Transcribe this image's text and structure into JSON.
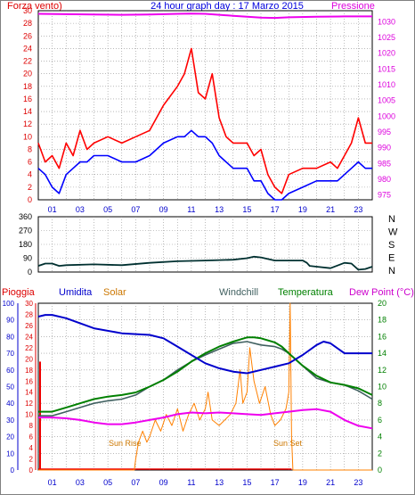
{
  "chart_data": [
    {
      "type": "line",
      "title": "24 hour graph day : 17 Marzo 2015",
      "left_axis_label": "Forza vento)",
      "right_axis_label": "Pressione",
      "x_ticks": [
        "01",
        "03",
        "05",
        "07",
        "09",
        "11",
        "13",
        "15",
        "17",
        "19",
        "21",
        "23"
      ],
      "y_left_ticks": [
        "0",
        "2",
        "4",
        "6",
        "8",
        "10",
        "12",
        "14",
        "16",
        "18",
        "20",
        "22",
        "24",
        "26",
        "28",
        "30"
      ],
      "y_left_lim": [
        0,
        30
      ],
      "y_right_ticks": [
        "975",
        "980",
        "985",
        "990",
        "995",
        "1000",
        "1005",
        "1010",
        "1015",
        "1020",
        "1025",
        "1030"
      ],
      "y_right_lim": [
        973.5,
        1033.5
      ],
      "grid": true,
      "colors": {
        "gust": "#ff0000",
        "wind": "#0000ff",
        "pressure": "#ee00ee"
      },
      "series": [
        {
          "axis": "right",
          "color": "#ee00ee",
          "x": [
            0,
            2,
            4,
            6,
            8,
            10,
            11,
            12,
            14,
            16,
            17,
            18,
            20,
            22,
            24
          ],
          "values": [
            1032.5,
            1032.4,
            1032.3,
            1032.2,
            1032.3,
            1032.5,
            1032.6,
            1032.5,
            1031.9,
            1031.3,
            1031.2,
            1031.4,
            1031.6,
            1031.7,
            1031.7
          ]
        },
        {
          "axis": "left",
          "color": "#ff0000",
          "x": [
            0,
            0.5,
            1,
            1.5,
            2,
            2.5,
            3,
            3.5,
            4,
            5,
            6,
            7,
            8,
            9,
            10,
            10.5,
            11,
            11.5,
            12,
            12.5,
            13,
            13.5,
            14,
            15,
            15.5,
            16,
            16.5,
            17,
            17.5,
            18,
            19,
            20,
            21,
            21.5,
            22,
            22.5,
            23,
            23.5,
            24
          ],
          "values": [
            9,
            6,
            7,
            5,
            9,
            7,
            11,
            8,
            9,
            10,
            9,
            10,
            11,
            15,
            18,
            20,
            24,
            17,
            16,
            20,
            13,
            10,
            9,
            9,
            7,
            8,
            4,
            2,
            1,
            4,
            5,
            5,
            6,
            5,
            7,
            9,
            13,
            9,
            9
          ]
        },
        {
          "axis": "left",
          "color": "#0000ff",
          "x": [
            0,
            0.5,
            1,
            1.5,
            2,
            2.5,
            3,
            3.5,
            4,
            5,
            6,
            7,
            8,
            9,
            10,
            10.5,
            11,
            11.5,
            12,
            12.5,
            13,
            13.5,
            14,
            15,
            15.5,
            16,
            16.5,
            17,
            17.5,
            18,
            19,
            20,
            21,
            21.5,
            22,
            22.5,
            23,
            23.5,
            24
          ],
          "values": [
            5,
            4,
            2,
            1,
            4,
            5,
            6,
            6,
            7,
            7,
            6,
            6,
            7,
            9,
            10,
            10,
            11,
            10,
            10,
            9,
            7,
            6,
            5,
            5,
            3,
            3,
            1,
            0,
            0,
            1,
            2,
            3,
            3,
            3,
            4,
            5,
            6,
            5,
            5
          ]
        }
      ]
    },
    {
      "type": "line",
      "y_left_ticks": [
        "0",
        "90",
        "180",
        "270",
        "360"
      ],
      "y_left_lim": [
        0,
        360
      ],
      "direction_labels": [
        "N",
        "W",
        "S",
        "E",
        "N"
      ],
      "x_ticks": [
        "01",
        "03",
        "05",
        "07",
        "09",
        "11",
        "13",
        "15",
        "17",
        "19",
        "21",
        "23"
      ],
      "grid": true,
      "series": [
        {
          "color": "#003030",
          "x": [
            0,
            0.5,
            1,
            1.5,
            2,
            4,
            6,
            8,
            10,
            12,
            14,
            15,
            15.5,
            16,
            17,
            18,
            19,
            19.3,
            19.5,
            20,
            21,
            22,
            22.5,
            23,
            23.5,
            24
          ],
          "values": [
            40,
            55,
            55,
            40,
            45,
            50,
            45,
            60,
            70,
            75,
            80,
            90,
            100,
            95,
            75,
            75,
            75,
            60,
            40,
            35,
            25,
            60,
            55,
            15,
            20,
            35
          ]
        }
      ]
    },
    {
      "type": "line",
      "header_labels": {
        "pioggia": "Pioggia",
        "umidita": "Umidita",
        "solar": "Solar",
        "windchill": "Windchill",
        "temperatura": "Temperatura",
        "dewpoint": "Dew Point (°C)"
      },
      "colors": {
        "rain": "#ee0000",
        "humidity": "#0000cc",
        "solar": "#ff8000",
        "windchill": "#406060",
        "temperature": "#008000",
        "dewpoint": "#ee00ee"
      },
      "x_ticks": [
        "01",
        "03",
        "05",
        "07",
        "09",
        "11",
        "13",
        "15",
        "17",
        "19",
        "21",
        "23"
      ],
      "humidity_ticks": [
        "0",
        "10",
        "20",
        "30",
        "40",
        "50",
        "60",
        "70",
        "80",
        "90",
        "100"
      ],
      "humidity_lim": [
        0,
        100
      ],
      "rain_ticks": [
        "0",
        "2",
        "4",
        "6",
        "8",
        "10",
        "12",
        "14",
        "16",
        "18",
        "20",
        "22",
        "24",
        "26",
        "28",
        "30"
      ],
      "rain_lim": [
        0,
        30
      ],
      "temp_ticks": [
        "0",
        "2",
        "4",
        "6",
        "8",
        "10",
        "12",
        "14",
        "16",
        "18",
        "20"
      ],
      "temp_lim": [
        0,
        20
      ],
      "annotations": [
        "Sun Rise",
        "Sun Set"
      ],
      "rain_bar": {
        "x": 0,
        "value": 19.5
      },
      "series": [
        {
          "name": "Umidita",
          "color": "#0000cc",
          "axis": "humidity",
          "x": [
            0,
            0.5,
            1,
            2,
            3,
            4,
            6,
            8,
            9,
            10,
            11,
            12,
            13,
            14,
            15,
            16,
            17,
            18,
            19,
            20,
            20.5,
            21,
            22,
            22.5,
            23,
            24
          ],
          "values": [
            92,
            93,
            93,
            91,
            88,
            85,
            82,
            81,
            79,
            74,
            69,
            64,
            61,
            59,
            58,
            60,
            62,
            64,
            69,
            75,
            77,
            76,
            70,
            70,
            70,
            70
          ]
        },
        {
          "name": "Temperatura",
          "color": "#008000",
          "axis": "temp",
          "x": [
            0,
            1,
            2,
            3,
            4,
            5,
            6,
            7,
            8,
            9,
            10,
            11,
            12,
            13,
            14,
            15,
            15.5,
            16,
            17,
            17.5,
            18,
            19,
            20,
            21,
            22,
            23,
            24
          ],
          "values": [
            7.0,
            7.0,
            7.5,
            8.0,
            8.5,
            8.8,
            9.0,
            9.3,
            10.0,
            10.8,
            11.8,
            13.0,
            14.0,
            14.8,
            15.4,
            15.9,
            15.9,
            15.8,
            15.3,
            14.8,
            14.0,
            12.5,
            11.3,
            10.5,
            10.2,
            9.8,
            9.0
          ]
        },
        {
          "name": "Windchill",
          "color": "#406060",
          "axis": "temp",
          "x": [
            0,
            1,
            2,
            3,
            4,
            5,
            6,
            7,
            8,
            9,
            10,
            11,
            12,
            13,
            14,
            15,
            16,
            17,
            17.5,
            18,
            19,
            20,
            21,
            22,
            23,
            24
          ],
          "values": [
            6.5,
            6.5,
            7.0,
            7.5,
            8.0,
            8.3,
            8.5,
            9.0,
            10.0,
            10.8,
            12.0,
            13.0,
            13.8,
            14.5,
            15.2,
            15.4,
            15.0,
            14.8,
            14.5,
            14.0,
            12.5,
            11.0,
            10.5,
            10.2,
            9.5,
            8.5
          ]
        },
        {
          "name": "Dew Point",
          "color": "#ee00ee",
          "axis": "temp",
          "x": [
            0,
            1,
            2,
            3,
            4,
            5,
            6,
            7,
            8,
            9,
            10,
            11,
            12,
            13,
            14,
            15,
            16,
            17,
            18,
            19,
            20,
            21,
            22,
            23,
            24
          ],
          "values": [
            6.3,
            6.3,
            6.2,
            6.0,
            5.7,
            5.5,
            5.5,
            5.7,
            6.0,
            6.3,
            6.7,
            6.9,
            6.8,
            6.9,
            6.8,
            6.7,
            6.6,
            6.8,
            7.0,
            7.2,
            7.3,
            7.0,
            6.0,
            5.3,
            5.0
          ]
        },
        {
          "name": "Solar",
          "color": "#ff8000",
          "axis": "rain",
          "x": [
            0,
            6.9,
            7.0,
            7.2,
            7.5,
            7.8,
            8.0,
            8.4,
            8.8,
            9.2,
            9.6,
            10.0,
            10.4,
            10.8,
            11.2,
            11.6,
            12.0,
            12.2,
            12.5,
            13.0,
            13.4,
            13.8,
            14.2,
            14.5,
            14.7,
            15.0,
            15.2,
            15.5,
            15.9,
            16.3,
            16.7,
            17.0,
            17.4,
            17.8,
            18.0,
            18.1,
            18.2,
            18.3,
            24
          ],
          "values": [
            0,
            0,
            2,
            5,
            7,
            5,
            6,
            9,
            7,
            10,
            8,
            11,
            7,
            10,
            12,
            9,
            11,
            14,
            9,
            8,
            9,
            10,
            12,
            18,
            12,
            14,
            22,
            16,
            12,
            15,
            10,
            8,
            9,
            11,
            14,
            30,
            6,
            0,
            0
          ]
        }
      ]
    }
  ]
}
